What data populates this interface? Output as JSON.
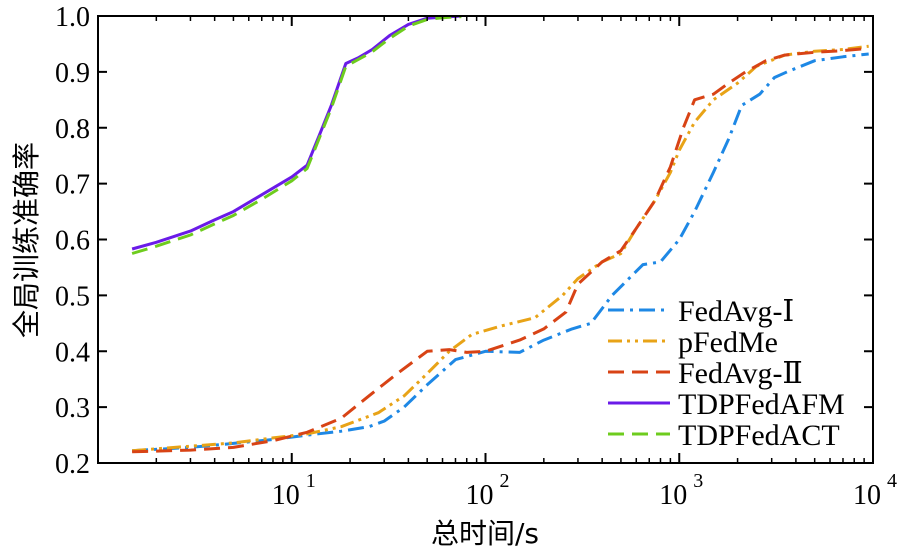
{
  "chart_data": {
    "type": "line",
    "title": "",
    "xlabel": "总时间/s",
    "ylabel": "全局训练准确率",
    "xscale": "log",
    "xlim": [
      1,
      10000
    ],
    "ylim": [
      0.2,
      1.0
    ],
    "grid": false,
    "legend_position": "bottom-right",
    "y_ticks": [
      {
        "value": 0.2,
        "label": "0.2"
      },
      {
        "value": 0.3,
        "label": "0.3"
      },
      {
        "value": 0.4,
        "label": "0.4"
      },
      {
        "value": 0.5,
        "label": "0.5"
      },
      {
        "value": 0.6,
        "label": "0.6"
      },
      {
        "value": 0.7,
        "label": "0.7"
      },
      {
        "value": 0.8,
        "label": "0.8"
      },
      {
        "value": 0.9,
        "label": "0.9"
      },
      {
        "value": 1.0,
        "label": "1.0"
      }
    ],
    "x_ticks": [
      {
        "value": 10,
        "base": "10",
        "exp": "1"
      },
      {
        "value": 100,
        "base": "10",
        "exp": "2"
      },
      {
        "value": 1000,
        "base": "10",
        "exp": "3"
      },
      {
        "value": 10000,
        "base": "10",
        "exp": "4"
      }
    ],
    "series": [
      {
        "name": "FedAvg-Ⅰ",
        "color": "#1e88e5",
        "dash": "dashdot",
        "points": [
          [
            1.5,
            0.222
          ],
          [
            3,
            0.228
          ],
          [
            5,
            0.235
          ],
          [
            8,
            0.242
          ],
          [
            12,
            0.25
          ],
          [
            18,
            0.257
          ],
          [
            25,
            0.265
          ],
          [
            30,
            0.275
          ],
          [
            38,
            0.3
          ],
          [
            50,
            0.34
          ],
          [
            70,
            0.385
          ],
          [
            100,
            0.4
          ],
          [
            150,
            0.398
          ],
          [
            200,
            0.42
          ],
          [
            280,
            0.44
          ],
          [
            350,
            0.45
          ],
          [
            450,
            0.5
          ],
          [
            550,
            0.53
          ],
          [
            650,
            0.555
          ],
          [
            800,
            0.56
          ],
          [
            1000,
            0.6
          ],
          [
            1200,
            0.65
          ],
          [
            1500,
            0.72
          ],
          [
            1800,
            0.78
          ],
          [
            2100,
            0.84
          ],
          [
            2600,
            0.86
          ],
          [
            3100,
            0.89
          ],
          [
            3600,
            0.9
          ],
          [
            5000,
            0.92
          ],
          [
            7000,
            0.927
          ],
          [
            9500,
            0.932
          ]
        ]
      },
      {
        "name": "pFedMe",
        "color": "#e8a317",
        "dash": "dashdotdot",
        "points": [
          [
            1.5,
            0.222
          ],
          [
            3,
            0.23
          ],
          [
            5,
            0.236
          ],
          [
            8,
            0.245
          ],
          [
            12,
            0.252
          ],
          [
            18,
            0.265
          ],
          [
            28,
            0.29
          ],
          [
            38,
            0.32
          ],
          [
            50,
            0.36
          ],
          [
            65,
            0.4
          ],
          [
            85,
            0.43
          ],
          [
            120,
            0.445
          ],
          [
            180,
            0.46
          ],
          [
            250,
            0.5
          ],
          [
            300,
            0.53
          ],
          [
            400,
            0.56
          ],
          [
            500,
            0.575
          ],
          [
            600,
            0.62
          ],
          [
            750,
            0.67
          ],
          [
            900,
            0.72
          ],
          [
            1000,
            0.76
          ],
          [
            1200,
            0.81
          ],
          [
            1500,
            0.85
          ],
          [
            2000,
            0.88
          ],
          [
            2500,
            0.91
          ],
          [
            3500,
            0.93
          ],
          [
            5000,
            0.937
          ],
          [
            7000,
            0.94
          ],
          [
            9500,
            0.946
          ]
        ]
      },
      {
        "name": "FedAvg-Ⅱ",
        "color": "#d84315",
        "dash": "dash",
        "points": [
          [
            1.5,
            0.22
          ],
          [
            3,
            0.223
          ],
          [
            5,
            0.228
          ],
          [
            8,
            0.24
          ],
          [
            12,
            0.255
          ],
          [
            18,
            0.28
          ],
          [
            25,
            0.32
          ],
          [
            35,
            0.36
          ],
          [
            50,
            0.4
          ],
          [
            65,
            0.403
          ],
          [
            80,
            0.398
          ],
          [
            100,
            0.4
          ],
          [
            150,
            0.42
          ],
          [
            200,
            0.44
          ],
          [
            260,
            0.47
          ],
          [
            300,
            0.52
          ],
          [
            400,
            0.56
          ],
          [
            500,
            0.58
          ],
          [
            600,
            0.62
          ],
          [
            750,
            0.67
          ],
          [
            900,
            0.73
          ],
          [
            1050,
            0.8
          ],
          [
            1200,
            0.85
          ],
          [
            1500,
            0.86
          ],
          [
            1800,
            0.88
          ],
          [
            2200,
            0.9
          ],
          [
            2800,
            0.92
          ],
          [
            3500,
            0.93
          ],
          [
            5000,
            0.935
          ],
          [
            7000,
            0.938
          ],
          [
            9500,
            0.942
          ]
        ]
      },
      {
        "name": "TDPFedAFM",
        "color": "#6a1be8",
        "dash": "solid",
        "points": [
          [
            1.5,
            0.583
          ],
          [
            2,
            0.595
          ],
          [
            3,
            0.615
          ],
          [
            4,
            0.635
          ],
          [
            5,
            0.65
          ],
          [
            7,
            0.68
          ],
          [
            10,
            0.712
          ],
          [
            12,
            0.733
          ],
          [
            14,
            0.79
          ],
          [
            16,
            0.84
          ],
          [
            19,
            0.915
          ],
          [
            22,
            0.925
          ],
          [
            26,
            0.94
          ],
          [
            32,
            0.965
          ],
          [
            40,
            0.985
          ],
          [
            50,
            0.996
          ],
          [
            60,
            0.998
          ],
          [
            75,
            1.0
          ]
        ]
      },
      {
        "name": "TDPFedACT",
        "color": "#6ecc1e",
        "dash": "dash",
        "points": [
          [
            1.5,
            0.575
          ],
          [
            2,
            0.588
          ],
          [
            3,
            0.608
          ],
          [
            4,
            0.628
          ],
          [
            5,
            0.643
          ],
          [
            7,
            0.672
          ],
          [
            10,
            0.705
          ],
          [
            12,
            0.727
          ],
          [
            14,
            0.785
          ],
          [
            16,
            0.835
          ],
          [
            19,
            0.91
          ],
          [
            22,
            0.922
          ],
          [
            26,
            0.936
          ],
          [
            32,
            0.96
          ],
          [
            40,
            0.982
          ],
          [
            50,
            0.994
          ],
          [
            60,
            0.997
          ],
          [
            75,
            0.999
          ]
        ]
      }
    ]
  }
}
